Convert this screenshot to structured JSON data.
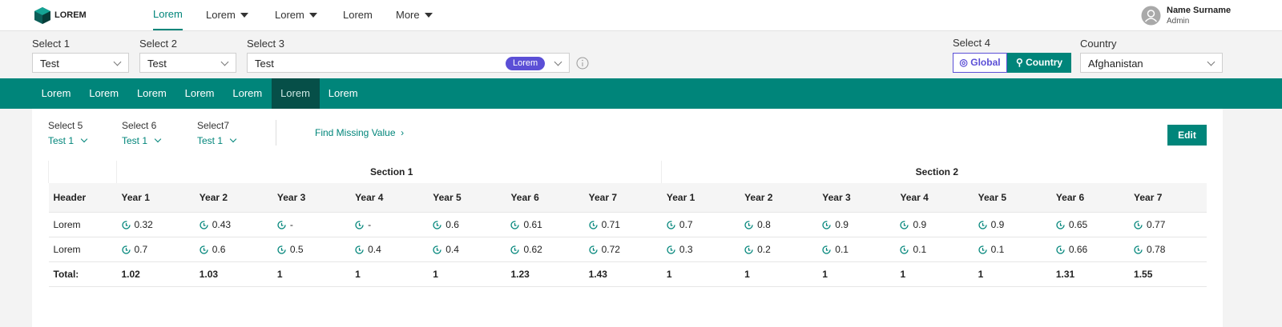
{
  "nav": {
    "logo": "LOREM",
    "items": [
      "Lorem",
      "Lorem",
      "Lorem",
      "Lorem",
      "More"
    ],
    "user_name": "Name Surname",
    "user_role": "Admin"
  },
  "filters": {
    "select1": {
      "label": "Select 1",
      "value": "Test"
    },
    "select2": {
      "label": "Select 2",
      "value": "Test"
    },
    "select3": {
      "label": "Select 3",
      "value": "Test",
      "badge": "Lorem"
    },
    "select4": {
      "label": "Select 4",
      "options": [
        "Global",
        "Country"
      ]
    },
    "country": {
      "label": "Country",
      "value": "Afghanistan"
    }
  },
  "tabs": [
    "Lorem",
    "Lorem",
    "Lorem",
    "Lorem",
    "Lorem",
    "Lorem",
    "Lorem"
  ],
  "subfilters": [
    {
      "label": "Select 5",
      "value": "Test 1"
    },
    {
      "label": "Select 6",
      "value": "Test 1"
    },
    {
      "label": "Select7",
      "value": "Test 1"
    }
  ],
  "link": "Find Missing Value",
  "edit": "Edit",
  "table": {
    "sections": [
      "Section 1",
      "Section 2"
    ],
    "header": [
      "Header",
      "Year 1",
      "Year 2",
      "Year 3",
      "Year 4",
      "Year 5",
      "Year 6",
      "Year 7",
      "Year 1",
      "Year 2",
      "Year 3",
      "Year 4",
      "Year 5",
      "Year 6",
      "Year 7"
    ],
    "rows": [
      [
        "Lorem",
        0.32,
        0.43,
        "-",
        "-",
        0.6,
        0.61,
        0.71,
        0.7,
        0.8,
        0.9,
        0.9,
        0.9,
        0.65,
        0.77
      ],
      [
        "Lorem",
        0.7,
        0.6,
        0.5,
        0.4,
        0.4,
        0.62,
        0.72,
        0.3,
        0.2,
        0.1,
        0.1,
        0.1,
        0.66,
        0.78
      ],
      [
        "Total:",
        1.02,
        1.03,
        1,
        1,
        1,
        1.23,
        1.43,
        1,
        1,
        1,
        1,
        1,
        1.31,
        1.55
      ]
    ]
  }
}
